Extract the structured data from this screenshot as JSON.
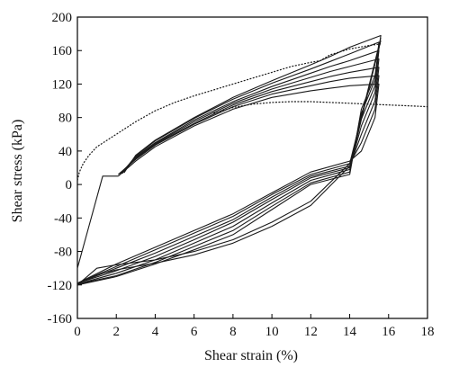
{
  "chart_data": {
    "type": "line",
    "xlabel": "Shear strain (%)",
    "ylabel": "Shear stress (kPa)",
    "xlim": [
      0,
      18
    ],
    "ylim": [
      -160,
      200
    ],
    "xticks": [
      0,
      2,
      4,
      6,
      8,
      10,
      12,
      14,
      16,
      18
    ],
    "yticks": [
      -160,
      -120,
      -80,
      -40,
      0,
      40,
      80,
      120,
      160,
      200
    ],
    "grid": false,
    "series": [
      {
        "style": "dashed",
        "points": [
          [
            0,
            5
          ],
          [
            0.1,
            15
          ],
          [
            0.3,
            25
          ],
          [
            0.6,
            35
          ],
          [
            1,
            45
          ],
          [
            2,
            60
          ],
          [
            3,
            75
          ],
          [
            4,
            88
          ],
          [
            5,
            98
          ],
          [
            6,
            106
          ],
          [
            7,
            113
          ],
          [
            8,
            120
          ],
          [
            9,
            127
          ],
          [
            10,
            134
          ],
          [
            11,
            141
          ],
          [
            12,
            146
          ],
          [
            12.5,
            148
          ],
          [
            13,
            155
          ],
          [
            14,
            162
          ],
          [
            15,
            166
          ],
          [
            15.6,
            168
          ]
        ]
      },
      {
        "style": "dashed",
        "points": [
          [
            7,
            85
          ],
          [
            8,
            92
          ],
          [
            9,
            96
          ],
          [
            10,
            98
          ],
          [
            11,
            99
          ],
          [
            12,
            99
          ],
          [
            13,
            98
          ],
          [
            14,
            97
          ],
          [
            15,
            96
          ],
          [
            16,
            95
          ],
          [
            17,
            94
          ],
          [
            18,
            93
          ]
        ]
      },
      {
        "style": "solid",
        "points": [
          [
            2.1,
            10
          ],
          [
            3,
            28
          ],
          [
            4,
            45
          ],
          [
            6,
            70
          ],
          [
            8,
            90
          ],
          [
            10,
            104
          ],
          [
            12,
            112
          ],
          [
            13,
            115
          ],
          [
            14,
            118
          ],
          [
            15.5,
            120
          ],
          [
            15.3,
            80
          ],
          [
            14.6,
            40
          ],
          [
            14,
            28
          ],
          [
            12,
            15
          ],
          [
            10,
            -10
          ],
          [
            8,
            -35
          ],
          [
            6,
            -55
          ],
          [
            4,
            -75
          ],
          [
            2,
            -95
          ],
          [
            0,
            -118
          ],
          [
            0,
            -100
          ],
          [
            1.3,
            10
          ],
          [
            2.1,
            10
          ]
        ]
      },
      {
        "style": "solid",
        "points": [
          [
            2.1,
            12
          ],
          [
            3,
            30
          ],
          [
            4,
            47
          ],
          [
            6,
            72
          ],
          [
            8,
            93
          ],
          [
            10,
            108
          ],
          [
            12,
            118
          ],
          [
            13,
            123
          ],
          [
            14,
            127
          ],
          [
            15.5,
            130
          ],
          [
            15.3,
            90
          ],
          [
            14.6,
            50
          ],
          [
            14,
            25
          ],
          [
            12,
            12
          ],
          [
            10,
            -12
          ],
          [
            8,
            -38
          ],
          [
            6,
            -58
          ],
          [
            4,
            -78
          ],
          [
            2,
            -98
          ],
          [
            0,
            -118
          ]
        ]
      },
      {
        "style": "solid",
        "points": [
          [
            2.2,
            12
          ],
          [
            3,
            31
          ],
          [
            4,
            48
          ],
          [
            6,
            73
          ],
          [
            8,
            95
          ],
          [
            10,
            111
          ],
          [
            12,
            123
          ],
          [
            13,
            129
          ],
          [
            14,
            134
          ],
          [
            15.5,
            140
          ],
          [
            15.3,
            100
          ],
          [
            14.6,
            60
          ],
          [
            14,
            22
          ],
          [
            12,
            10
          ],
          [
            10,
            -15
          ],
          [
            8,
            -42
          ],
          [
            6,
            -62
          ],
          [
            4,
            -82
          ],
          [
            2,
            -100
          ],
          [
            0,
            -118
          ]
        ]
      },
      {
        "style": "solid",
        "points": [
          [
            2.2,
            13
          ],
          [
            3,
            32
          ],
          [
            4,
            49
          ],
          [
            6,
            75
          ],
          [
            8,
            97
          ],
          [
            10,
            114
          ],
          [
            12,
            128
          ],
          [
            13,
            135
          ],
          [
            14,
            141
          ],
          [
            15.5,
            150
          ],
          [
            15.3,
            110
          ],
          [
            14.6,
            70
          ],
          [
            14,
            20
          ],
          [
            12,
            8
          ],
          [
            10,
            -18
          ],
          [
            8,
            -45
          ],
          [
            6,
            -66
          ],
          [
            4,
            -86
          ],
          [
            2,
            -103
          ],
          [
            0,
            -118
          ]
        ]
      },
      {
        "style": "solid",
        "points": [
          [
            2.3,
            13
          ],
          [
            3,
            33
          ],
          [
            4,
            50
          ],
          [
            6,
            77
          ],
          [
            8,
            99
          ],
          [
            10,
            117
          ],
          [
            12,
            133
          ],
          [
            13,
            141
          ],
          [
            14,
            148
          ],
          [
            15.5,
            160
          ],
          [
            15.3,
            118
          ],
          [
            14.6,
            78
          ],
          [
            14,
            18
          ],
          [
            12,
            5
          ],
          [
            10,
            -22
          ],
          [
            8,
            -50
          ],
          [
            6,
            -70
          ],
          [
            4,
            -90
          ],
          [
            2,
            -106
          ],
          [
            0,
            -119
          ]
        ]
      },
      {
        "style": "solid",
        "points": [
          [
            2.3,
            14
          ],
          [
            3,
            34
          ],
          [
            4,
            52
          ],
          [
            6,
            79
          ],
          [
            8,
            102
          ],
          [
            10,
            121
          ],
          [
            12,
            138
          ],
          [
            13,
            147
          ],
          [
            14,
            156
          ],
          [
            15.5,
            170
          ],
          [
            15.3,
            125
          ],
          [
            14.6,
            85
          ],
          [
            14,
            15
          ],
          [
            12,
            2
          ],
          [
            10,
            -26
          ],
          [
            8,
            -55
          ],
          [
            6,
            -74
          ],
          [
            4,
            -93
          ],
          [
            2,
            -109
          ],
          [
            0,
            -119
          ]
        ]
      },
      {
        "style": "solid",
        "points": [
          [
            2.4,
            14
          ],
          [
            3,
            35
          ],
          [
            4,
            53
          ],
          [
            6,
            80
          ],
          [
            8,
            104
          ],
          [
            10,
            124
          ],
          [
            12,
            143
          ],
          [
            13,
            153
          ],
          [
            14,
            164
          ],
          [
            15.6,
            178
          ],
          [
            15.3,
            130
          ],
          [
            14.6,
            90
          ],
          [
            14,
            12
          ],
          [
            12,
            0
          ],
          [
            10,
            -30
          ],
          [
            8,
            -60
          ],
          [
            6,
            -78
          ],
          [
            4,
            -95
          ],
          [
            2,
            -110
          ],
          [
            0,
            -120
          ]
        ]
      },
      {
        "style": "solid",
        "points": [
          [
            0,
            -120
          ],
          [
            1,
            -100
          ],
          [
            2,
            -96
          ],
          [
            4,
            -90
          ],
          [
            6,
            -80
          ],
          [
            8,
            -66
          ],
          [
            10,
            -45
          ],
          [
            12,
            -20
          ],
          [
            14,
            25
          ],
          [
            15.6,
            175
          ]
        ]
      },
      {
        "style": "solid",
        "points": [
          [
            0,
            -118
          ],
          [
            1,
            -108
          ],
          [
            2,
            -102
          ],
          [
            4,
            -94
          ],
          [
            6,
            -84
          ],
          [
            8,
            -70
          ],
          [
            10,
            -50
          ],
          [
            12,
            -25
          ],
          [
            14,
            22
          ],
          [
            15.6,
            172
          ]
        ]
      }
    ]
  }
}
